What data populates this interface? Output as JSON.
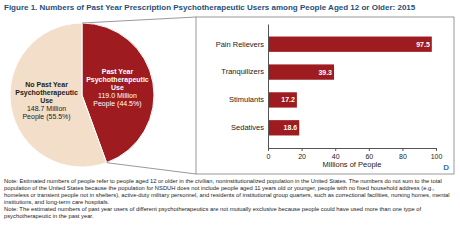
{
  "chart_data": [
    {
      "type": "pie",
      "title": "Figure 1. Numbers of Past Year Prescription Psychotherapeutic Users among People Aged 12 or Older: 2015",
      "categories": [
        "Past Year Psychotherapeutic Use",
        "No Past Year Psychotherapeutic Use"
      ],
      "values": [
        119.0,
        148.7
      ],
      "value_labels": [
        "119.0 Million People (44.5%)",
        "148.7 Million People (55.5%)"
      ],
      "colors": [
        "#9e1b20",
        "#f3dfc9"
      ],
      "data_labels": true,
      "annotations": [
        "Note: Estimated numbers of people refer to people aged 12 or older in the civilian, noninstitutionalized population in the United States. The numbers do not sum to the total population of the United States because the population for NSDUH does not include people aged 11 years old or younger, people with no fixed household address (e.g., homeless or transient people not in shelters), active-duty military personnel, and residents of institutional group quarters, such as correctional facilities, nursing homes, mental institutions, and long-term care hospitals.",
        "Note: The estimated numbers of past year users of different psychotherapeutics are not mutually exclusive because people could have used more than one type of psychotherapeutic in the past year.",
        "D"
      ]
    },
    {
      "type": "bar",
      "orientation": "horizontal",
      "categories": [
        "Pain Relievers",
        "Tranquilizers",
        "Stimulants",
        "Sedatives"
      ],
      "values": [
        97.5,
        39.3,
        17.2,
        18.6
      ],
      "color": "#9e1b20",
      "xlim": [
        0,
        100
      ],
      "xticks": [
        0,
        20,
        40,
        60,
        80,
        100
      ],
      "xlabel": "Millions of People",
      "data_labels": true,
      "grid": false
    }
  ]
}
